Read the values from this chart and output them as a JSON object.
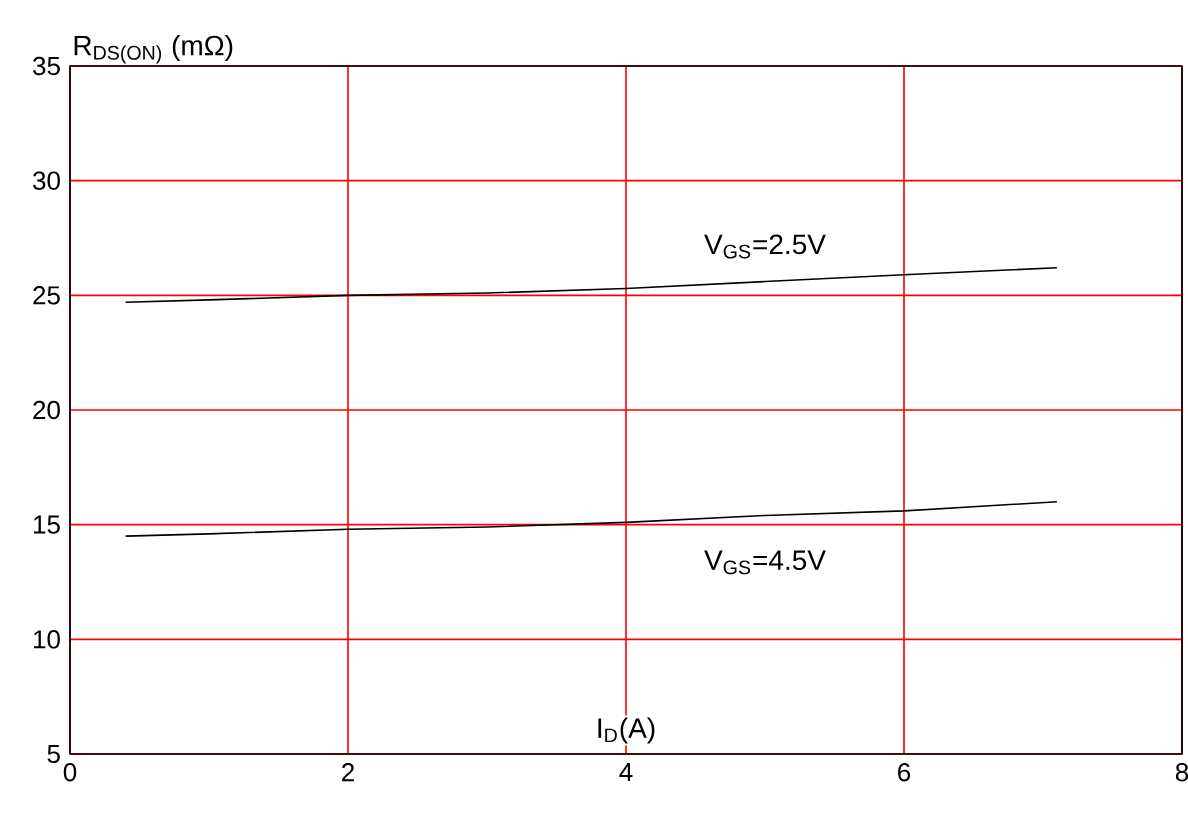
{
  "chart_data": {
    "type": "line",
    "ylabel": "R$_{DS(ON)}$ (mΩ)",
    "xlabel": "I$_{D}$(A)",
    "xlim": [
      0,
      8
    ],
    "ylim": [
      5,
      35
    ],
    "xticks": [
      0,
      2,
      4,
      6,
      8
    ],
    "yticks": [
      5,
      10,
      15,
      20,
      25,
      30,
      35
    ],
    "grid": true,
    "marker": "none",
    "line_style": "solid",
    "series": [
      {
        "name": "V$_{GS}$=2.5V",
        "color": "#000000",
        "x": [
          0.4,
          1,
          2,
          3,
          4,
          5,
          6,
          7.1
        ],
        "values": [
          24.7,
          24.8,
          25.0,
          25.1,
          25.3,
          25.6,
          25.9,
          26.2
        ]
      },
      {
        "name": "V$_{GS}$=4.5V",
        "color": "#000000",
        "x": [
          0.4,
          1,
          2,
          3,
          4,
          5,
          6,
          7.1
        ],
        "values": [
          14.5,
          14.6,
          14.8,
          14.9,
          15.1,
          15.4,
          15.6,
          16.0
        ]
      }
    ]
  }
}
